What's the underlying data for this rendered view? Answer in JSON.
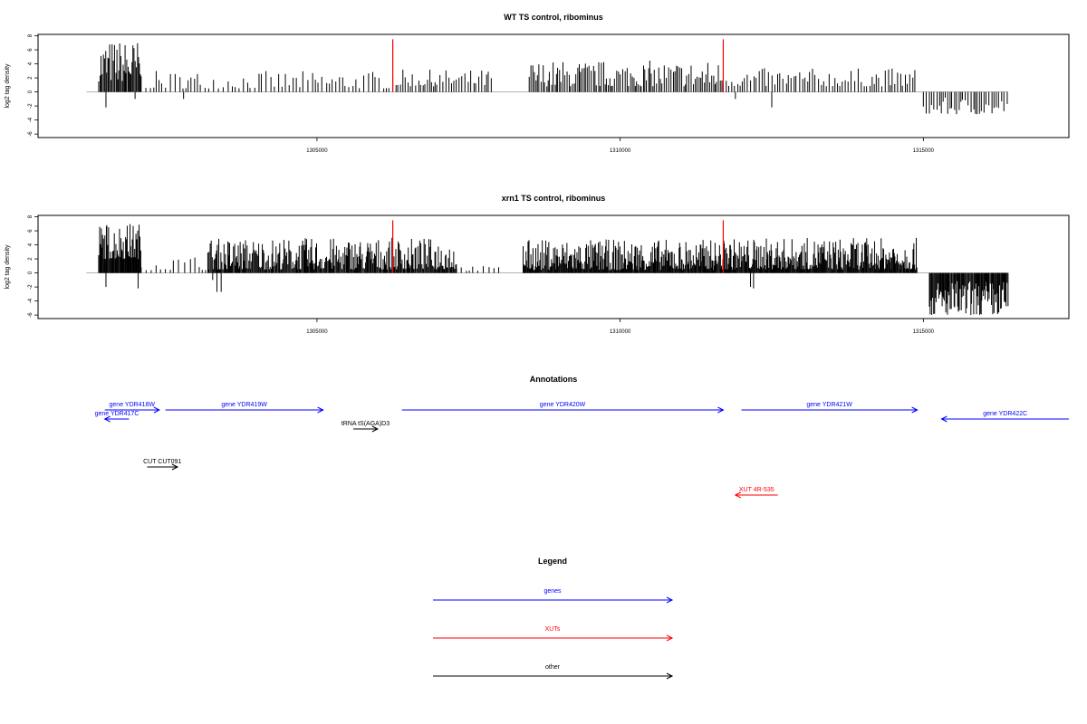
{
  "chart_data": [
    {
      "type": "bar",
      "title": "WT TS control, ribominus",
      "ylabel": "log2 tag density",
      "xlabel": "",
      "xlim": [
        1300400,
        1317400
      ],
      "ylim": [
        -6.5,
        8.2
      ],
      "yticks": [
        8,
        6,
        4,
        2,
        0,
        -2,
        -4,
        -6
      ],
      "xticks": [
        1305000,
        1310000,
        1315000
      ],
      "grid": false,
      "legend": "none",
      "positive_bar_color": "#000000",
      "negative_bar_color": "#000000",
      "marker_color": "#ff0000",
      "markers": [
        {
          "x": 1306250,
          "y": 7.5
        },
        {
          "x": 1311700,
          "y": 7.5
        }
      ],
      "segments": [
        {
          "from": 1301400,
          "to": 1302100,
          "min": 1.5,
          "max": 7.5,
          "spacing": 18
        },
        {
          "from": 1302100,
          "to": 1306200,
          "min": 0.5,
          "max": 3,
          "spacing": 60
        },
        {
          "from": 1306250,
          "to": 1307900,
          "min": 0.8,
          "max": 3.2,
          "spacing": 40
        },
        {
          "from": 1308500,
          "to": 1311700,
          "min": 0.8,
          "max": 4.5,
          "spacing": 30
        },
        {
          "from": 1311750,
          "to": 1314900,
          "min": 0.8,
          "max": 3.4,
          "spacing": 45
        },
        {
          "from": 1315000,
          "to": 1316400,
          "min": -3.2,
          "max": -0.8,
          "spacing": 40
        }
      ],
      "extra_negative": [
        {
          "x": 1301520,
          "y": -2.2
        },
        {
          "x": 1302000,
          "y": -1.0
        },
        {
          "x": 1302800,
          "y": -1.0
        },
        {
          "x": 1312500,
          "y": -2.2
        },
        {
          "x": 1311900,
          "y": -1.0
        }
      ]
    },
    {
      "type": "bar",
      "title": "xrn1 TS control, ribominus",
      "ylabel": "log2 tag density",
      "xlabel": "",
      "xlim": [
        1300400,
        1317400
      ],
      "ylim": [
        -6.5,
        8.2
      ],
      "yticks": [
        8,
        6,
        4,
        2,
        0,
        -2,
        -4,
        -6
      ],
      "xticks": [
        1305000,
        1310000,
        1315000
      ],
      "grid": false,
      "legend": "none",
      "positive_bar_color": "#000000",
      "negative_bar_color": "#000000",
      "marker_color": "#ff0000",
      "markers": [
        {
          "x": 1306250,
          "y": 7.5
        },
        {
          "x": 1311700,
          "y": 7.5
        }
      ],
      "segments": [
        {
          "from": 1301400,
          "to": 1302100,
          "min": 2,
          "max": 7.2,
          "spacing": 12
        },
        {
          "from": 1302100,
          "to": 1303200,
          "min": 0.4,
          "max": 2.5,
          "spacing": 80
        },
        {
          "from": 1303200,
          "to": 1307300,
          "min": 0.5,
          "max": 5,
          "spacing": 14
        },
        {
          "from": 1307300,
          "to": 1308000,
          "min": 0.3,
          "max": 1,
          "spacing": 70
        },
        {
          "from": 1308400,
          "to": 1311800,
          "min": 0.4,
          "max": 4.8,
          "spacing": 12
        },
        {
          "from": 1311800,
          "to": 1314900,
          "min": 0.5,
          "max": 5,
          "spacing": 12
        },
        {
          "from": 1315100,
          "to": 1316400,
          "min": -6,
          "max": -1,
          "spacing": 14
        }
      ],
      "extra_negative": [
        {
          "x": 1301520,
          "y": -2.0
        },
        {
          "x": 1302050,
          "y": -2.2
        },
        {
          "x": 1303350,
          "y": -2.7
        },
        {
          "x": 1303420,
          "y": -2.7
        },
        {
          "x": 1303280,
          "y": -1.0
        },
        {
          "x": 1312150,
          "y": -2.0
        },
        {
          "x": 1312200,
          "y": -2.2
        }
      ]
    }
  ],
  "annotations": {
    "title": "Annotations",
    "xlim": [
      1300400,
      1317400
    ],
    "items": [
      {
        "label": "gene YDR418W",
        "from": 1301500,
        "to": 1302400,
        "color": "#0000ff",
        "row": 0,
        "dir": "right"
      },
      {
        "label": "gene YDR417C",
        "from": 1301500,
        "to": 1301900,
        "color": "#0000ff",
        "row": 1,
        "dir": "left"
      },
      {
        "label": "gene YDR419W",
        "from": 1302500,
        "to": 1305100,
        "color": "#0000ff",
        "row": 0,
        "dir": "right"
      },
      {
        "label": "tRNA tS(AGA)D3",
        "from": 1305600,
        "to": 1306000,
        "color": "#000000",
        "row": 2,
        "dir": "right"
      },
      {
        "label": "gene YDR420W",
        "from": 1306400,
        "to": 1311700,
        "color": "#0000ff",
        "row": 0,
        "dir": "right"
      },
      {
        "label": "gene YDR421W",
        "from": 1312000,
        "to": 1314900,
        "color": "#0000ff",
        "row": 0,
        "dir": "right"
      },
      {
        "label": "gene YDR422C",
        "from": 1315300,
        "to": 1317400,
        "color": "#0000ff",
        "row": 1,
        "dir": "left"
      },
      {
        "label": "CUT CUT091",
        "from": 1302200,
        "to": 1302700,
        "color": "#000000",
        "row": 3,
        "dir": "right"
      },
      {
        "label": "XUT 4R-535",
        "from": 1311900,
        "to": 1312600,
        "color": "#ff0000",
        "row": 4,
        "dir": "left"
      }
    ]
  },
  "legend": {
    "title": "Legend",
    "items": [
      {
        "label": "genes",
        "color": "#0000ff"
      },
      {
        "label": "XUTs",
        "color": "#ff0000"
      },
      {
        "label": "other",
        "color": "#000000"
      }
    ]
  }
}
